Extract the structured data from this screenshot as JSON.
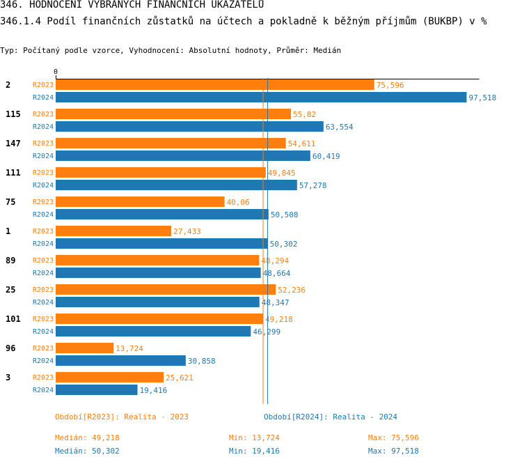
{
  "header": {
    "title": "346. HODNOCENÍ VYBRANÝCH FINANČNÍCH UKAZATELŮ",
    "subtitle": "346.1.4 Podíl finančních zůstatků na účtech a pokladně k běžným příjmům (BUKBP) v %",
    "info": "Typ: Počítaný podle vzorce, Vyhodnocení: Absolutní hodnoty, Průměr: Medián"
  },
  "chart_data": {
    "type": "bar",
    "orientation": "horizontal",
    "zero_label": "0",
    "xlim": [
      0,
      100
    ],
    "categories": [
      "2",
      "115",
      "147",
      "111",
      "75",
      "1",
      "89",
      "25",
      "101",
      "96",
      "3"
    ],
    "series": [
      {
        "name": "R2023",
        "color": "#ff7f0e",
        "values": [
          75.596,
          55.82,
          54.611,
          49.845,
          40.06,
          27.433,
          48.294,
          52.236,
          49.218,
          13.724,
          25.621
        ],
        "labels": [
          "75,596",
          "55,82",
          "54,611",
          "49,845",
          "40,06",
          "27,433",
          "48,294",
          "52,236",
          "49,218",
          "13,724",
          "25,621"
        ],
        "median": 49.218
      },
      {
        "name": "R2024",
        "color": "#1f77b4",
        "values": [
          97.518,
          63.554,
          60.419,
          57.278,
          50.508,
          50.302,
          48.664,
          48.347,
          46.299,
          30.858,
          19.416
        ],
        "labels": [
          "97,518",
          "63,554",
          "60,419",
          "57,278",
          "50,508",
          "50,302",
          "48,664",
          "48,347",
          "46,299",
          "30,858",
          "19,416"
        ],
        "median": 50.302
      }
    ]
  },
  "footer": {
    "legend_2023": "Období[R2023]: Realita - 2023",
    "legend_2024": "Období[R2024]: Realita - 2024",
    "median_2023": "Medián: 49,218",
    "min_2023": "Min: 13,724",
    "max_2023": "Max: 75,596",
    "median_2024": "Medián: 50,302",
    "min_2024": "Min: 19,416",
    "max_2024": "Max: 97,518"
  }
}
